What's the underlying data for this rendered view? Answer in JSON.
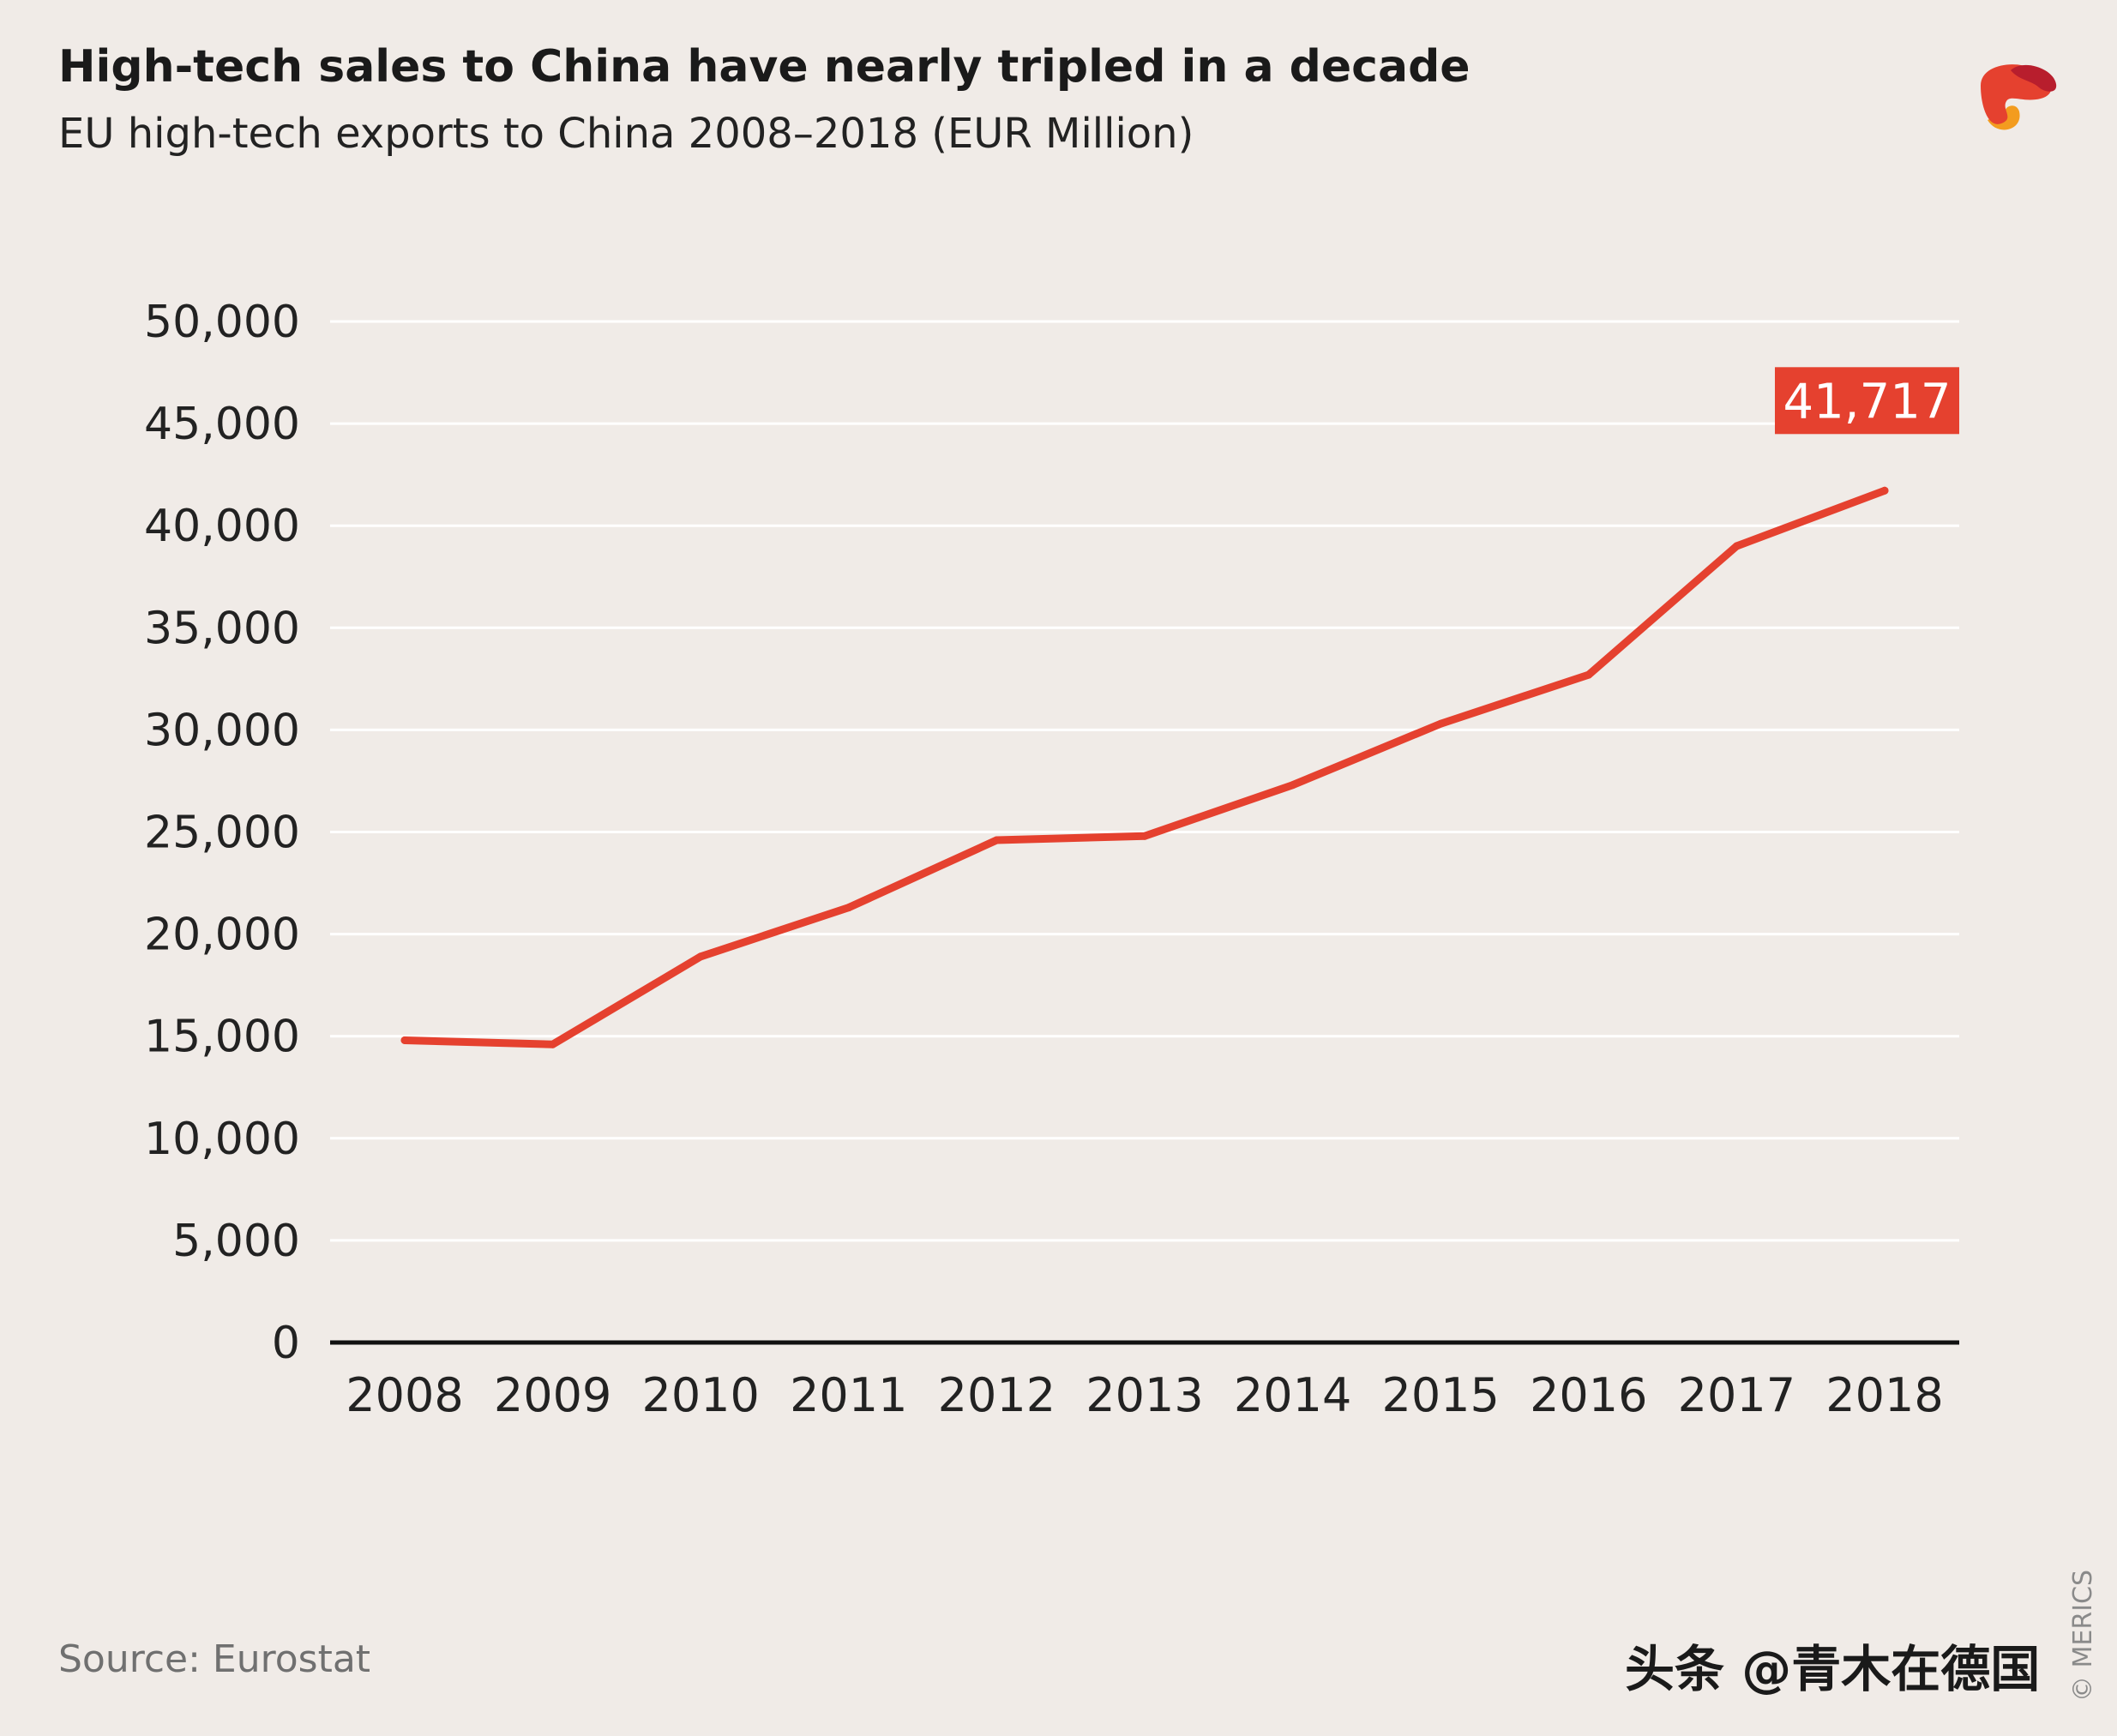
{
  "header": {
    "title": "High-tech sales to China have nearly tripled in a decade",
    "subtitle": "EU high-tech exports to China 2008–2018 (EUR Million)"
  },
  "footer": {
    "source": "Source: Eurostat",
    "watermark": "头条 @青木在德国",
    "copyright": "© MERICS"
  },
  "colors": {
    "line": "#e5412f",
    "background": "#f0ebe7",
    "grid": "#ffffff",
    "axis": "#111111",
    "logo": [
      "#e5412f",
      "#b81e2d",
      "#f39c1f"
    ]
  },
  "chart_data": {
    "type": "line",
    "title": "High-tech sales to China have nearly tripled in a decade",
    "subtitle": "EU high-tech exports to China 2008–2018 (EUR Million)",
    "xlabel": "",
    "ylabel": "",
    "categories": [
      "2008",
      "2009",
      "2010",
      "2011",
      "2012",
      "2013",
      "2014",
      "2015",
      "2016",
      "2017",
      "2018"
    ],
    "series": [
      {
        "values": [
          14800,
          14600,
          18900,
          21300,
          24600,
          24800,
          27300,
          30300,
          32700,
          39000,
          41717
        ]
      }
    ],
    "ylim": [
      0,
      50000
    ],
    "yticks": [
      0,
      5000,
      10000,
      15000,
      20000,
      25000,
      30000,
      35000,
      40000,
      45000,
      50000
    ],
    "ytick_labels": [
      "0",
      "5,000",
      "10,000",
      "15,000",
      "20,000",
      "25,000",
      "30,000",
      "35,000",
      "40,000",
      "45,000",
      "50,000"
    ],
    "grid": true,
    "legend": "none",
    "annotations": [
      {
        "category": "2018",
        "value": 41717,
        "text": "41,717"
      }
    ]
  }
}
